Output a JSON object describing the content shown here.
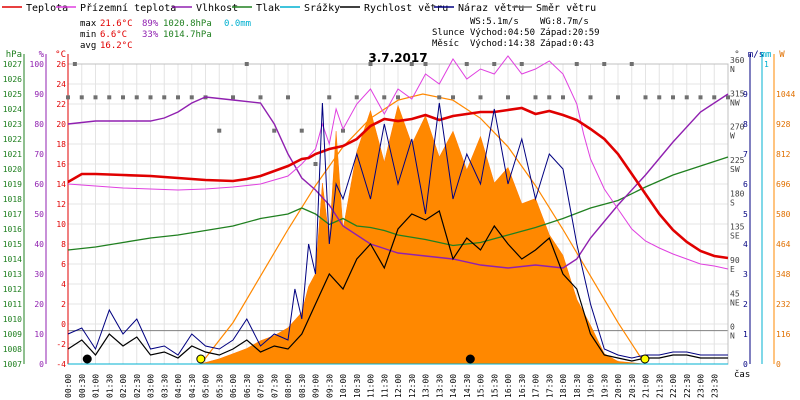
{
  "chart_data": {
    "type": "line",
    "title": "3.7.2017",
    "legend": {
      "position": "top",
      "items": [
        {
          "label": "Teplota",
          "color": "#e00000"
        },
        {
          "label": "Přízemní teplota",
          "color": "#e040e0"
        },
        {
          "label": "Vlhkost",
          "color": "#9020b0"
        },
        {
          "label": "Tlak",
          "color": "#208020"
        },
        {
          "label": "Srážky",
          "color": "#00b0d0"
        },
        {
          "label": "Rychlost větru",
          "color": "#000000"
        },
        {
          "label": "Náraz větru",
          "color": "#000080"
        },
        {
          "label": "Směr větru",
          "color": "#707070"
        }
      ]
    },
    "stats": {
      "max": {
        "label": "max",
        "temp": "21.6°C",
        "hum": "89%",
        "press": "1020.8hPa",
        "rain": "0.0mm"
      },
      "min": {
        "label": "min",
        "temp": "6.6°C",
        "hum": "33%",
        "press": "1014.7hPa"
      },
      "avg": {
        "label": "avg",
        "temp": "16.2°C"
      },
      "wind": {
        "ws": "WS:5.1m/s",
        "wg": "WG:8.7m/s"
      },
      "sun": {
        "label": "Slunce",
        "rise": "Východ:04:50",
        "set": "Západ:20:59"
      },
      "moon": {
        "label": "Měsíc",
        "rise": "Východ:14:38",
        "set": "Západ:0:43"
      }
    },
    "axes": {
      "hpa": {
        "unit": "hPa",
        "range": [
          1007,
          1027
        ],
        "ticks": [
          1007,
          1008,
          1009,
          1010,
          1011,
          1012,
          1013,
          1014,
          1015,
          1016,
          1017,
          1018,
          1019,
          1020,
          1021,
          1022,
          1023,
          1024,
          1025,
          1026,
          1027
        ]
      },
      "humidity": {
        "unit": "%",
        "range": [
          0,
          100
        ],
        "ticks": [
          0,
          10,
          20,
          30,
          40,
          50,
          60,
          70,
          80,
          90,
          100
        ]
      },
      "temperature": {
        "unit": "°C",
        "range": [
          -4,
          26
        ],
        "ticks": [
          -4,
          -2,
          0,
          2,
          4,
          6,
          8,
          10,
          12,
          14,
          16,
          18,
          20,
          22,
          24,
          26
        ]
      },
      "direction": {
        "unit": "°",
        "ticks": [
          {
            "v": 0,
            "t": "0"
          },
          {
            "v": 45,
            "t": "45"
          },
          {
            "v": 90,
            "t": "90"
          },
          {
            "v": 135,
            "t": "135"
          },
          {
            "v": 180,
            "t": "180"
          },
          {
            "v": 225,
            "t": "225"
          },
          {
            "v": 270,
            "t": "270"
          },
          {
            "v": 315,
            "t": "315"
          },
          {
            "v": 360,
            "t": "360"
          }
        ],
        "compass": [
          {
            "v": 0,
            "t": "N"
          },
          {
            "v": 45,
            "t": "NE"
          },
          {
            "v": 90,
            "t": "E"
          },
          {
            "v": 135,
            "t": "SE"
          },
          {
            "v": 180,
            "t": "S"
          },
          {
            "v": 225,
            "t": "SW"
          },
          {
            "v": 270,
            "t": "W"
          },
          {
            "v": 315,
            "t": "NW"
          },
          {
            "v": 360,
            "t": "N"
          }
        ]
      },
      "wind": {
        "unit": "m/s",
        "range": [
          0,
          9
        ],
        "ticks": [
          0,
          1,
          2,
          3,
          4,
          5,
          6,
          7,
          8,
          9
        ]
      },
      "rain": {
        "unit": "mm",
        "top_tick": "1"
      },
      "solar": {
        "unit": "W",
        "ticks": [
          0,
          116,
          232,
          348,
          464,
          580,
          696,
          812,
          928,
          1044
        ]
      },
      "time": {
        "label": "čas",
        "ticks": [
          "00:00",
          "00:30",
          "01:00",
          "01:30",
          "02:00",
          "02:30",
          "03:00",
          "03:30",
          "04:00",
          "04:30",
          "05:00",
          "05:30",
          "06:00",
          "06:30",
          "07:00",
          "07:30",
          "08:00",
          "08:30",
          "09:00",
          "09:30",
          "10:00",
          "10:30",
          "11:00",
          "11:30",
          "12:00",
          "12:30",
          "13:00",
          "13:30",
          "14:00",
          "14:30",
          "15:00",
          "15:30",
          "16:00",
          "16:30",
          "17:00",
          "17:30",
          "18:00",
          "18:30",
          "19:00",
          "19:30",
          "20:00",
          "20:30",
          "21:00",
          "21:30",
          "22:00",
          "22:30",
          "23:00",
          "23:30"
        ]
      }
    },
    "markers": [
      {
        "name": "moonset",
        "hour": 0.7,
        "color": "#000000"
      },
      {
        "name": "sunrise",
        "hour": 4.83,
        "color": "#ffff00"
      },
      {
        "name": "moonrise",
        "hour": 14.63,
        "color": "#000000"
      },
      {
        "name": "sunset",
        "hour": 20.98,
        "color": "#ffff00"
      }
    ],
    "series": [
      {
        "name": "Teplota",
        "unit": "°C",
        "color": "#e00000",
        "hours": [
          0,
          0.5,
          1,
          2,
          3,
          4,
          5,
          6,
          6.5,
          7,
          7.5,
          8,
          8.5,
          8.75,
          9,
          9.5,
          10,
          10.5,
          11,
          11.5,
          12,
          12.5,
          13,
          13.5,
          14,
          14.5,
          15,
          15.5,
          16,
          16.5,
          17,
          17.5,
          18,
          18.5,
          19,
          19.5,
          20,
          20.5,
          21,
          21.5,
          22,
          22.5,
          23,
          23.5,
          24
        ],
        "values": [
          14.2,
          15.0,
          15.0,
          14.9,
          14.8,
          14.6,
          14.4,
          14.3,
          14.5,
          14.8,
          15.3,
          15.8,
          16.5,
          16.6,
          17.0,
          17.5,
          17.8,
          18.5,
          19.8,
          20.5,
          20.3,
          20.5,
          20.9,
          20.4,
          20.8,
          21.0,
          21.2,
          21.2,
          21.4,
          21.6,
          21.0,
          21.3,
          20.9,
          20.4,
          19.5,
          18.5,
          17.0,
          15.0,
          13.0,
          11.0,
          9.4,
          8.2,
          7.3,
          6.8,
          6.6
        ]
      },
      {
        "name": "Přízemní teplota",
        "unit": "°C",
        "color": "#e040e0",
        "hours": [
          0,
          1,
          2,
          3,
          4,
          5,
          6,
          7,
          8,
          8.5,
          9,
          9.25,
          9.5,
          9.75,
          10,
          10.5,
          11,
          11.5,
          12,
          12.5,
          13,
          13.5,
          14,
          14.5,
          15,
          15.5,
          16,
          16.5,
          17,
          17.5,
          18,
          18.5,
          18.75,
          19,
          19.5,
          20,
          20.5,
          21,
          21.5,
          22,
          22.5,
          23,
          23.5,
          24
        ],
        "values": [
          14.0,
          13.8,
          13.6,
          13.5,
          13.4,
          13.5,
          13.7,
          14.0,
          14.8,
          16.0,
          17.5,
          20.0,
          18.0,
          21.5,
          19.5,
          22.0,
          23.5,
          21.0,
          23.5,
          22.5,
          25.0,
          24.0,
          26.5,
          24.5,
          25.5,
          25.0,
          26.8,
          25.0,
          25.5,
          26.3,
          25.0,
          22.0,
          19.0,
          16.5,
          13.5,
          11.5,
          9.5,
          8.3,
          7.6,
          7.0,
          6.5,
          6.0,
          5.8,
          5.5
        ]
      },
      {
        "name": "Vlhkost",
        "unit": "%",
        "color": "#9020b0",
        "hours": [
          0,
          1,
          2,
          3,
          3.5,
          4,
          4.5,
          5,
          6,
          7,
          7.5,
          8,
          8.5,
          9,
          9.5,
          10,
          11,
          12,
          13,
          14,
          15,
          16,
          17,
          18,
          18.5,
          19,
          20,
          21,
          22,
          23,
          24
        ],
        "values": [
          80,
          81,
          81,
          81,
          82,
          84,
          87,
          89,
          88,
          87,
          80,
          70,
          62,
          58,
          53,
          46,
          40,
          37,
          36,
          35,
          33,
          32,
          33,
          32,
          35,
          42,
          53,
          63,
          74,
          84,
          90
        ]
      },
      {
        "name": "Tlak",
        "unit": "hPa",
        "color": "#208020",
        "hours": [
          0,
          1,
          2,
          3,
          4,
          5,
          6,
          7,
          8,
          8.5,
          9,
          9.5,
          10,
          10.5,
          11,
          11.5,
          12,
          13,
          14,
          15,
          16,
          17,
          18,
          19,
          20,
          21,
          22,
          23,
          24
        ],
        "values": [
          1014.6,
          1014.8,
          1015.1,
          1015.4,
          1015.6,
          1015.9,
          1016.2,
          1016.7,
          1017.0,
          1017.4,
          1017.0,
          1016.3,
          1016.7,
          1016.2,
          1016.1,
          1015.9,
          1015.6,
          1015.3,
          1014.9,
          1015.1,
          1015.6,
          1016.1,
          1016.7,
          1017.4,
          1017.9,
          1018.8,
          1019.6,
          1020.2,
          1020.8
        ]
      },
      {
        "name": "Rychlost větru",
        "unit": "m/s",
        "color": "#000000",
        "hours": [
          0,
          0.5,
          1,
          1.5,
          2,
          2.5,
          3,
          3.5,
          4,
          4.5,
          5,
          5.5,
          6,
          6.5,
          7,
          7.5,
          8,
          8.5,
          9,
          9.5,
          10,
          10.5,
          11,
          11.5,
          12,
          12.5,
          13,
          13.5,
          14,
          14.5,
          15,
          15.5,
          16,
          16.5,
          17,
          17.5,
          18,
          18.5,
          19,
          19.5,
          20,
          20.5,
          21,
          21.5,
          22,
          22.5,
          23,
          23.5,
          24
        ],
        "values": [
          0.5,
          0.8,
          0.3,
          1.0,
          0.6,
          0.9,
          0.3,
          0.4,
          0.2,
          0.6,
          0.4,
          0.3,
          0.5,
          0.8,
          0.4,
          0.6,
          0.5,
          1.0,
          2.0,
          3.0,
          2.5,
          3.5,
          4.0,
          3.2,
          4.5,
          5.0,
          4.8,
          5.1,
          3.5,
          4.2,
          3.8,
          4.6,
          4.0,
          3.5,
          3.8,
          4.2,
          3.0,
          2.5,
          1.0,
          0.3,
          0.2,
          0.1,
          0.2,
          0.2,
          0.3,
          0.3,
          0.2,
          0.2,
          0.2
        ]
      },
      {
        "name": "Náraz větru",
        "unit": "m/s",
        "color": "#000080",
        "hours": [
          0,
          0.5,
          1,
          1.5,
          2,
          2.5,
          3,
          3.5,
          4,
          4.5,
          5,
          5.5,
          6,
          6.5,
          7,
          7.5,
          8,
          8.25,
          8.5,
          8.75,
          9,
          9.25,
          9.5,
          9.75,
          10,
          10.5,
          11,
          11.5,
          12,
          12.5,
          13,
          13.5,
          14,
          14.5,
          15,
          15.5,
          16,
          16.5,
          17,
          17.5,
          18,
          18.5,
          19,
          19.5,
          20,
          20.5,
          21,
          21.5,
          22,
          22.5,
          23,
          23.5,
          24
        ],
        "values": [
          1,
          1.2,
          0.5,
          1.8,
          1,
          1.5,
          0.5,
          0.6,
          0.3,
          1,
          0.6,
          0.5,
          0.8,
          1.5,
          0.6,
          1,
          0.8,
          2.5,
          1.5,
          4,
          3,
          8.7,
          4,
          6,
          5.5,
          7,
          5.5,
          8,
          6,
          7.5,
          5,
          8.7,
          5.5,
          7,
          6,
          8.5,
          6,
          7.5,
          5.5,
          7,
          6.5,
          4,
          2,
          0.5,
          0.3,
          0.2,
          0.3,
          0.3,
          0.4,
          0.4,
          0.3,
          0.3,
          0.3
        ]
      },
      {
        "name": "Směr větru",
        "unit": "°",
        "color": "#707070",
        "hours": [
          0,
          0.25,
          0.5,
          1,
          1.5,
          2,
          2.5,
          3,
          3.5,
          4,
          4.5,
          5,
          5.5,
          6,
          6.5,
          7,
          7.5,
          8,
          8.5,
          9,
          9.5,
          10,
          10.5,
          11,
          11.5,
          12,
          12.5,
          13,
          13.5,
          14,
          14.5,
          15,
          15.5,
          16,
          16.5,
          17,
          17.5,
          18,
          18.5,
          19,
          19.5,
          20,
          20.5,
          21,
          21.5,
          22,
          22.5,
          23,
          23.5,
          24
        ],
        "values": [
          315,
          360,
          315,
          315,
          315,
          315,
          315,
          315,
          315,
          315,
          315,
          315,
          270,
          315,
          360,
          315,
          270,
          315,
          270,
          225,
          315,
          270,
          315,
          360,
          315,
          315,
          360,
          360,
          315,
          315,
          360,
          315,
          360,
          315,
          360,
          315,
          315,
          315,
          360,
          315,
          360,
          315,
          360,
          315,
          315,
          315,
          315,
          315,
          315,
          315
        ]
      },
      {
        "name": "Srážky",
        "unit": "mm",
        "color": "#00b0d0",
        "hours": [
          0,
          24
        ],
        "values": [
          0,
          0
        ]
      },
      {
        "name": "Sluneční záření",
        "unit": "W",
        "color": "#ff8800",
        "hours": [
          4.8,
          5.5,
          6,
          6.5,
          7,
          7.5,
          8,
          8.5,
          8.75,
          9,
          9.25,
          9.5,
          9.75,
          10,
          10.5,
          11,
          11.5,
          12,
          12.5,
          13,
          13.5,
          14,
          14.5,
          15,
          15.5,
          16,
          16.5,
          17,
          17.5,
          18,
          18.5,
          19,
          19.5,
          20,
          21
        ],
        "values": [
          0,
          20,
          40,
          60,
          90,
          110,
          140,
          200,
          300,
          350,
          700,
          480,
          900,
          520,
          820,
          980,
          780,
          1000,
          850,
          960,
          800,
          900,
          750,
          880,
          700,
          760,
          620,
          640,
          500,
          420,
          250,
          150,
          40,
          10,
          0
        ]
      },
      {
        "name": "Teoretické záření",
        "unit": "W",
        "color": "#ff8800",
        "hours": [
          4.83,
          6,
          7,
          8,
          9,
          10,
          11,
          12,
          12.9,
          14,
          15,
          16,
          17,
          18,
          19,
          20,
          20.98
        ],
        "values": [
          0,
          160,
          340,
          520,
          690,
          840,
          950,
          1020,
          1044,
          1020,
          950,
          840,
          690,
          520,
          340,
          160,
          0
        ]
      }
    ]
  }
}
